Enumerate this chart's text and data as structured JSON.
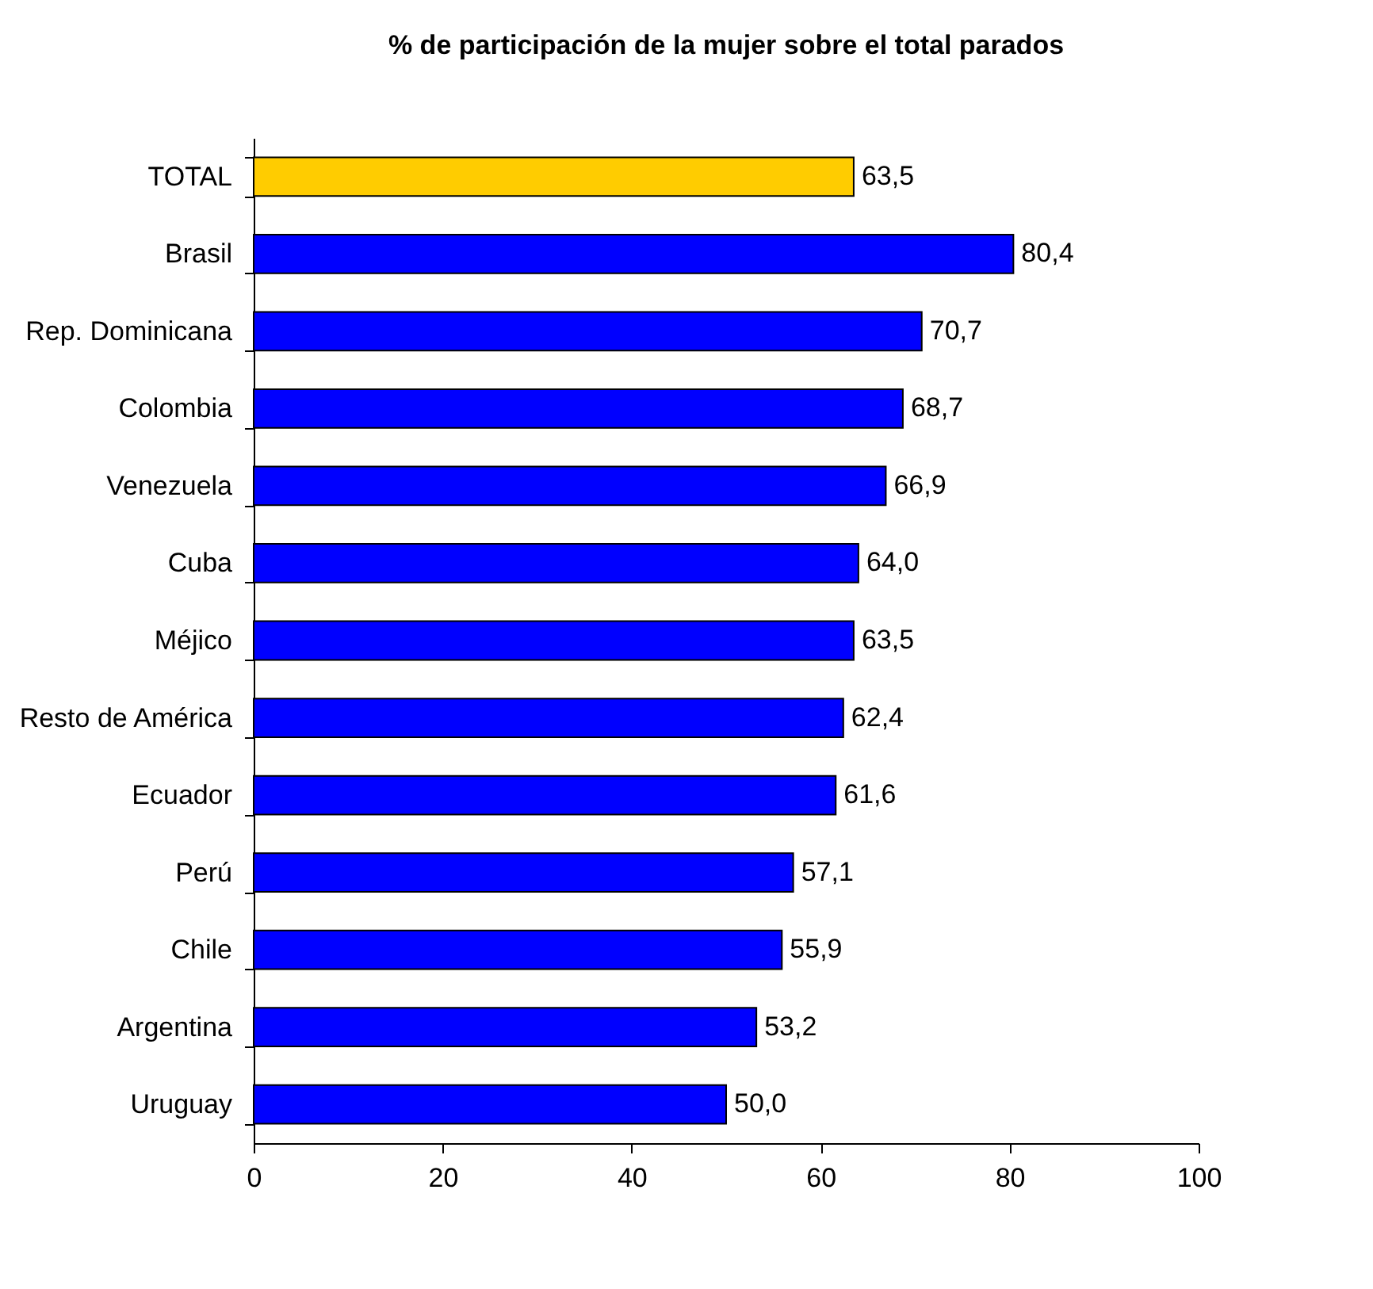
{
  "chart_data": {
    "type": "bar",
    "orientation": "horizontal",
    "title": "% de participación de la mujer sobre el total parados",
    "categories": [
      "TOTAL",
      "Brasil",
      "Rep. Dominicana",
      "Colombia",
      "Venezuela",
      "Cuba",
      "Méjico",
      "Resto de América",
      "Ecuador",
      "Perú",
      "Chile",
      "Argentina",
      "Uruguay"
    ],
    "values": [
      63.5,
      80.4,
      70.7,
      68.7,
      66.9,
      64.0,
      63.5,
      62.4,
      61.6,
      57.1,
      55.9,
      53.2,
      50.0
    ],
    "value_labels": [
      "63,5",
      "80,4",
      "70,7",
      "68,7",
      "66,9",
      "64,0",
      "63,5",
      "62,4",
      "61,6",
      "57,1",
      "55,9",
      "53,2",
      "50,0"
    ],
    "colors": [
      "#ffcc00",
      "#0000ff",
      "#0000ff",
      "#0000ff",
      "#0000ff",
      "#0000ff",
      "#0000ff",
      "#0000ff",
      "#0000ff",
      "#0000ff",
      "#0000ff",
      "#0000ff",
      "#0000ff"
    ],
    "xlim": [
      0,
      100
    ],
    "xticks": [
      0,
      20,
      40,
      60,
      80,
      100
    ],
    "grid": false,
    "legend": false
  }
}
